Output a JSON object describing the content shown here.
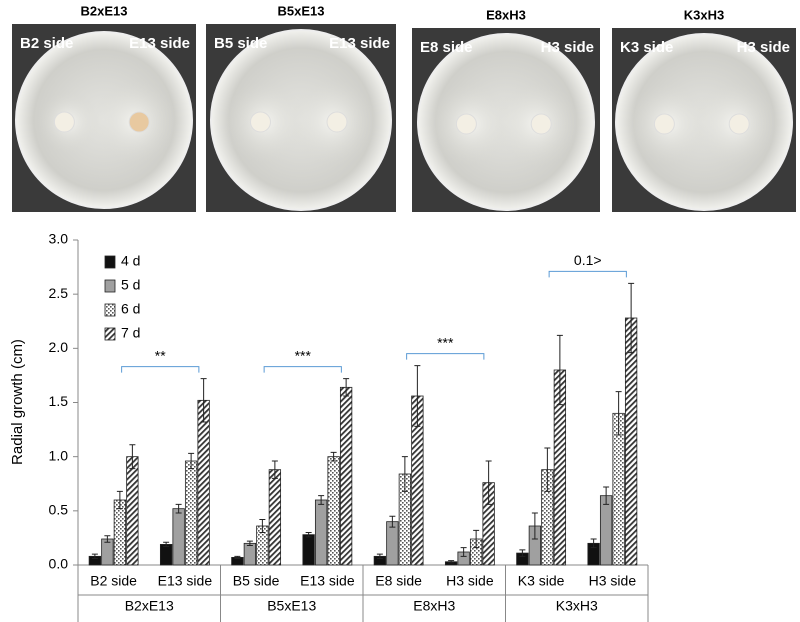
{
  "photos": [
    {
      "title": "B2xE13",
      "left": "B2 side",
      "right": "E13 side"
    },
    {
      "title": "B5xE13",
      "left": "B5 side",
      "right": "E13 side"
    },
    {
      "title": "E8xH3",
      "left": "E8 side",
      "right": "H3 side"
    },
    {
      "title": "K3xH3",
      "left": "K3 side",
      "right": "H3 side"
    }
  ],
  "chart_data": {
    "type": "bar",
    "y_label": "Radial growth (cm)",
    "categories": [
      "B2 side",
      "E13 side",
      "B5 side",
      "E13 side",
      "E8 side",
      "H3 side",
      "K3 side",
      "H3 side"
    ],
    "groups": [
      "B2xE13",
      "B5xE13",
      "E8xH3",
      "K3xH3"
    ],
    "annotations": [
      "**",
      "***",
      "***",
      "0.1>"
    ],
    "series": [
      {
        "name": "4 d",
        "color": "#111111",
        "pattern": "solid",
        "values": [
          0.08,
          0.19,
          0.07,
          0.28,
          0.08,
          0.03,
          0.11,
          0.2
        ],
        "errors": [
          0.02,
          0.02,
          0.01,
          0.02,
          0.02,
          0.01,
          0.03,
          0.04
        ]
      },
      {
        "name": "5 d",
        "color": "#a0a0a0",
        "pattern": "solid",
        "values": [
          0.24,
          0.52,
          0.2,
          0.6,
          0.4,
          0.12,
          0.36,
          0.64
        ],
        "errors": [
          0.03,
          0.04,
          0.02,
          0.04,
          0.05,
          0.04,
          0.12,
          0.08
        ]
      },
      {
        "name": "6 d",
        "color": "#555555",
        "pattern": "dots",
        "values": [
          0.6,
          0.96,
          0.36,
          1.0,
          0.84,
          0.24,
          0.88,
          1.4
        ],
        "errors": [
          0.08,
          0.07,
          0.06,
          0.04,
          0.16,
          0.08,
          0.2,
          0.2
        ]
      },
      {
        "name": "7 d",
        "color": "#333333",
        "pattern": "hatch",
        "values": [
          1.0,
          1.52,
          0.88,
          1.64,
          1.56,
          0.76,
          1.8,
          2.28
        ],
        "errors": [
          0.11,
          0.2,
          0.08,
          0.08,
          0.28,
          0.2,
          0.32,
          0.32
        ]
      }
    ],
    "ylim": [
      0,
      3
    ],
    "yticks": [
      {
        "value": 0,
        "label": "0.0"
      },
      {
        "value": 0.5,
        "label": "0.5"
      },
      {
        "value": 1,
        "label": "1.0"
      },
      {
        "value": 1.5,
        "label": "1.5"
      },
      {
        "value": 2,
        "label": "2.0"
      },
      {
        "value": 2.5,
        "label": "2.5"
      },
      {
        "value": 3,
        "label": "3.0"
      }
    ],
    "legend": "top-left"
  }
}
